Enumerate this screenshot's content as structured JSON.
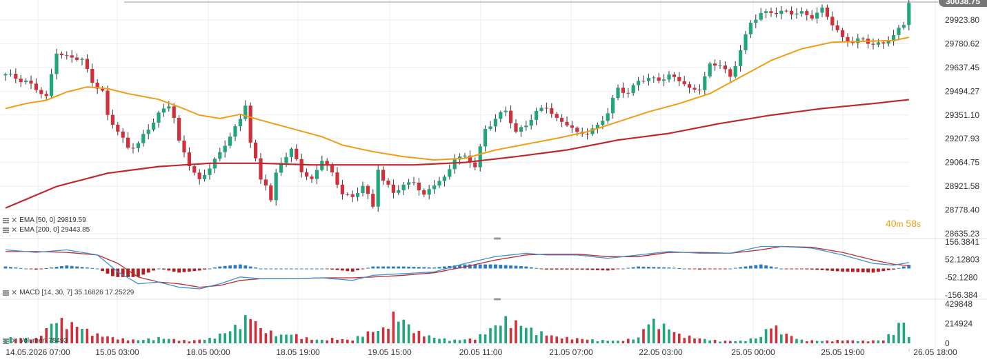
{
  "chart_data": [
    {
      "type": "candlestick",
      "overlays": [
        {
          "name": "EMA [50, 0]",
          "value": "29819.59",
          "color": "#f39c12"
        },
        {
          "name": "EMA [200, 0]",
          "value": "29443.85",
          "color": "#c0292b"
        }
      ],
      "y_ticks": [
        "29923.80",
        "29780.62",
        "29637.45",
        "29494.27",
        "29351.10",
        "29207.93",
        "29064.75",
        "28921.58",
        "28778.40",
        "28635.23"
      ],
      "ylim": [
        28635.23,
        30038.75
      ],
      "last_price": "30038.75",
      "x_ticks": [
        "14.05.2026 07:00",
        "15.05 03:00",
        "18.05 00:00",
        "18.05 19:00",
        "19.05 15:00",
        "20.05 11:00",
        "21.05 07:00",
        "22.05 03:00",
        "25.05 00:00",
        "25.05 19:00",
        "26.05 18:00"
      ],
      "timer": {
        "minutes": "40",
        "minutes_unit": "m",
        "seconds": "58",
        "seconds_unit": "s"
      },
      "price_anchors": [
        [
          0,
          29590
        ],
        [
          4,
          29560
        ],
        [
          8,
          29450
        ],
        [
          10,
          29740
        ],
        [
          12,
          29700
        ],
        [
          15,
          29680
        ],
        [
          17,
          29560
        ],
        [
          19,
          29490
        ],
        [
          20,
          29340
        ],
        [
          22,
          29250
        ],
        [
          24,
          29160
        ],
        [
          26,
          29180
        ],
        [
          28,
          29260
        ],
        [
          30,
          29360
        ],
        [
          32,
          29420
        ],
        [
          33,
          29340
        ],
        [
          34,
          29180
        ],
        [
          36,
          29050
        ],
        [
          38,
          28960
        ],
        [
          40,
          29040
        ],
        [
          42,
          29110
        ],
        [
          44,
          29230
        ],
        [
          46,
          29330
        ],
        [
          47,
          29420
        ],
        [
          48,
          29180
        ],
        [
          50,
          28960
        ],
        [
          51,
          28940
        ],
        [
          52,
          28840
        ],
        [
          53,
          29000
        ],
        [
          54,
          29070
        ],
        [
          56,
          29130
        ],
        [
          58,
          29020
        ],
        [
          60,
          28960
        ],
        [
          62,
          29080
        ],
        [
          64,
          28990
        ],
        [
          66,
          28890
        ],
        [
          68,
          28850
        ],
        [
          70,
          28920
        ],
        [
          72,
          28800
        ],
        [
          73,
          29040
        ],
        [
          74,
          28960
        ],
        [
          76,
          28880
        ],
        [
          78,
          28920
        ],
        [
          80,
          28960
        ],
        [
          82,
          28860
        ],
        [
          84,
          28930
        ],
        [
          86,
          28970
        ],
        [
          88,
          29100
        ],
        [
          90,
          29090
        ],
        [
          92,
          29040
        ],
        [
          94,
          29270
        ],
        [
          96,
          29330
        ],
        [
          98,
          29370
        ],
        [
          100,
          29250
        ],
        [
          102,
          29300
        ],
        [
          104,
          29360
        ],
        [
          106,
          29400
        ],
        [
          108,
          29330
        ],
        [
          110,
          29300
        ],
        [
          112,
          29230
        ],
        [
          114,
          29250
        ],
        [
          116,
          29290
        ],
        [
          118,
          29360
        ],
        [
          120,
          29510
        ],
        [
          122,
          29490
        ],
        [
          124,
          29560
        ],
        [
          126,
          29560
        ],
        [
          128,
          29570
        ],
        [
          130,
          29590
        ],
        [
          132,
          29560
        ],
        [
          134,
          29500
        ],
        [
          136,
          29520
        ],
        [
          138,
          29650
        ],
        [
          140,
          29650
        ],
        [
          142,
          29580
        ],
        [
          144,
          29750
        ],
        [
          146,
          29900
        ],
        [
          148,
          29960
        ],
        [
          150,
          29980
        ],
        [
          152,
          29970
        ],
        [
          154,
          29960
        ],
        [
          156,
          29970
        ],
        [
          158,
          29950
        ],
        [
          160,
          29980
        ],
        [
          162,
          29900
        ],
        [
          164,
          29820
        ],
        [
          166,
          29790
        ],
        [
          168,
          29800
        ],
        [
          170,
          29780
        ],
        [
          172,
          29790
        ],
        [
          174,
          29820
        ],
        [
          176,
          29900
        ],
        [
          177,
          30038.75
        ]
      ],
      "ema50_anchors": [
        [
          0,
          29390
        ],
        [
          4,
          29420
        ],
        [
          8,
          29440
        ],
        [
          12,
          29490
        ],
        [
          16,
          29520
        ],
        [
          20,
          29510
        ],
        [
          24,
          29480
        ],
        [
          30,
          29445
        ],
        [
          34,
          29400
        ],
        [
          38,
          29350
        ],
        [
          42,
          29330
        ],
        [
          46,
          29355
        ],
        [
          50,
          29320
        ],
        [
          56,
          29270
        ],
        [
          62,
          29220
        ],
        [
          66,
          29170
        ],
        [
          72,
          29130
        ],
        [
          78,
          29100
        ],
        [
          84,
          29080
        ],
        [
          90,
          29090
        ],
        [
          96,
          29140
        ],
        [
          102,
          29175
        ],
        [
          108,
          29210
        ],
        [
          114,
          29250
        ],
        [
          120,
          29310
        ],
        [
          126,
          29370
        ],
        [
          132,
          29420
        ],
        [
          138,
          29480
        ],
        [
          144,
          29580
        ],
        [
          150,
          29680
        ],
        [
          156,
          29750
        ],
        [
          162,
          29790
        ],
        [
          168,
          29795
        ],
        [
          174,
          29800
        ],
        [
          177,
          29819.59
        ]
      ],
      "ema200_anchors": [
        [
          0,
          28790
        ],
        [
          10,
          28920
        ],
        [
          20,
          29000
        ],
        [
          30,
          29040
        ],
        [
          40,
          29060
        ],
        [
          50,
          29060
        ],
        [
          60,
          29050
        ],
        [
          70,
          29050
        ],
        [
          80,
          29050
        ],
        [
          90,
          29065
        ],
        [
          100,
          29100
        ],
        [
          110,
          29140
        ],
        [
          120,
          29200
        ],
        [
          130,
          29240
        ],
        [
          140,
          29300
        ],
        [
          150,
          29350
        ],
        [
          160,
          29390
        ],
        [
          170,
          29420
        ],
        [
          177,
          29443.85
        ]
      ]
    },
    {
      "type": "macd",
      "title": "MACD [14, 30, 7]",
      "value1": "35.16826",
      "value2": "17.25229",
      "y_ticks": [
        "156.3841",
        "52.12803",
        "-52.1280",
        "-156.384"
      ],
      "ylim": [
        -156.384,
        156.3841
      ],
      "line_color": "#3a8fd6",
      "signal_color": "#c0292b",
      "hist_pos_color": "#2a7bc4",
      "hist_neg_color": "#b11f22",
      "macd_anchors": [
        [
          0,
          110
        ],
        [
          6,
          95
        ],
        [
          12,
          110
        ],
        [
          18,
          80
        ],
        [
          22,
          -20
        ],
        [
          26,
          -90
        ],
        [
          30,
          -80
        ],
        [
          34,
          -110
        ],
        [
          38,
          -120
        ],
        [
          42,
          -90
        ],
        [
          46,
          -50
        ],
        [
          50,
          -60
        ],
        [
          56,
          -60
        ],
        [
          62,
          -55
        ],
        [
          68,
          -70
        ],
        [
          72,
          -40
        ],
        [
          78,
          -30
        ],
        [
          84,
          -20
        ],
        [
          90,
          30
        ],
        [
          96,
          70
        ],
        [
          102,
          90
        ],
        [
          106,
          80
        ],
        [
          112,
          80
        ],
        [
          118,
          60
        ],
        [
          124,
          80
        ],
        [
          130,
          100
        ],
        [
          136,
          90
        ],
        [
          142,
          90
        ],
        [
          148,
          130
        ],
        [
          152,
          130
        ],
        [
          158,
          120
        ],
        [
          164,
          80
        ],
        [
          170,
          30
        ],
        [
          174,
          20
        ],
        [
          177,
          35.17
        ]
      ],
      "signal_anchors": [
        [
          0,
          100
        ],
        [
          6,
          100
        ],
        [
          12,
          95
        ],
        [
          18,
          80
        ],
        [
          22,
          30
        ],
        [
          26,
          -50
        ],
        [
          30,
          -80
        ],
        [
          34,
          -90
        ],
        [
          38,
          -110
        ],
        [
          42,
          -100
        ],
        [
          46,
          -70
        ],
        [
          50,
          -60
        ],
        [
          56,
          -60
        ],
        [
          62,
          -55
        ],
        [
          68,
          -55
        ],
        [
          72,
          -50
        ],
        [
          78,
          -40
        ],
        [
          84,
          -25
        ],
        [
          90,
          10
        ],
        [
          96,
          50
        ],
        [
          102,
          80
        ],
        [
          106,
          85
        ],
        [
          112,
          85
        ],
        [
          118,
          70
        ],
        [
          124,
          70
        ],
        [
          130,
          95
        ],
        [
          136,
          95
        ],
        [
          142,
          90
        ],
        [
          148,
          110
        ],
        [
          152,
          130
        ],
        [
          158,
          125
        ],
        [
          164,
          95
        ],
        [
          170,
          50
        ],
        [
          174,
          25
        ],
        [
          177,
          17.25
        ]
      ]
    },
    {
      "type": "bar",
      "title": "Volumen",
      "value": "78493",
      "y_ticks": [
        "429848",
        "214924",
        "0"
      ],
      "ylim": [
        0,
        429848
      ],
      "up_color": "#1fa67a",
      "down_color": "#d32f3a",
      "volume_anchors": [
        [
          0,
          70000
        ],
        [
          6,
          60000
        ],
        [
          10,
          300000
        ],
        [
          14,
          220000
        ],
        [
          18,
          110000
        ],
        [
          22,
          60000
        ],
        [
          26,
          40000
        ],
        [
          30,
          70000
        ],
        [
          36,
          30000
        ],
        [
          40,
          60000
        ],
        [
          44,
          160000
        ],
        [
          48,
          360000
        ],
        [
          50,
          180000
        ],
        [
          54,
          100000
        ],
        [
          56,
          120000
        ],
        [
          60,
          50000
        ],
        [
          62,
          40000
        ],
        [
          64,
          60000
        ],
        [
          68,
          40000
        ],
        [
          70,
          120000
        ],
        [
          74,
          180000
        ],
        [
          76,
          350000
        ],
        [
          78,
          290000
        ],
        [
          80,
          160000
        ],
        [
          84,
          70000
        ],
        [
          88,
          40000
        ],
        [
          92,
          60000
        ],
        [
          98,
          300000
        ],
        [
          100,
          260000
        ],
        [
          104,
          150000
        ],
        [
          108,
          80000
        ],
        [
          112,
          60000
        ],
        [
          116,
          40000
        ],
        [
          120,
          30000
        ],
        [
          124,
          70000
        ],
        [
          126,
          280000
        ],
        [
          128,
          260000
        ],
        [
          132,
          110000
        ],
        [
          136,
          60000
        ],
        [
          140,
          30000
        ],
        [
          144,
          30000
        ],
        [
          148,
          80000
        ],
        [
          150,
          250000
        ],
        [
          152,
          140000
        ],
        [
          156,
          40000
        ],
        [
          160,
          30000
        ],
        [
          164,
          40000
        ],
        [
          168,
          30000
        ],
        [
          172,
          40000
        ],
        [
          176,
          290000
        ],
        [
          177,
          78493
        ]
      ]
    }
  ]
}
